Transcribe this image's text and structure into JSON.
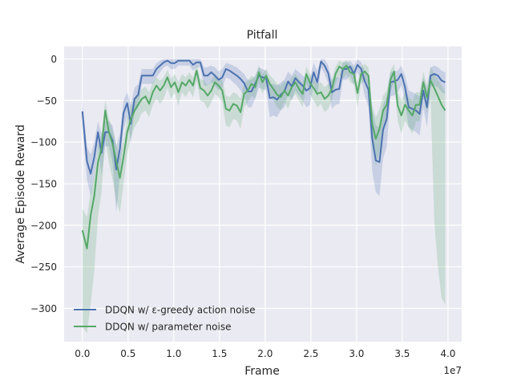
{
  "chart_data": {
    "type": "line",
    "title": "Pitfall",
    "xlabel": "Frame",
    "ylabel": "Average Episode Reward",
    "x_offset_label": "1e7",
    "xlim": [
      -0.2,
      4.15
    ],
    "ylim": [
      -340,
      15
    ],
    "xticks": [
      0.0,
      0.5,
      1.0,
      1.5,
      2.0,
      2.5,
      3.0,
      3.5,
      4.0
    ],
    "xtick_labels": [
      "0.0",
      "0.5",
      "1.0",
      "1.5",
      "2.0",
      "2.5",
      "3.0",
      "3.5",
      "4.0"
    ],
    "yticks": [
      0,
      -50,
      -100,
      -150,
      -200,
      -250,
      -300
    ],
    "ytick_labels": [
      "0",
      "−50",
      "−100",
      "−150",
      "−200",
      "−250",
      "−300"
    ],
    "grid": true,
    "legend_position": "lower-left",
    "style": {
      "plot_background": "#eaeaf2",
      "grid_color": "#ffffff"
    },
    "series": [
      {
        "name": "DDQN w/ ε-greedy action noise",
        "color": "#4c72b0",
        "x": [
          0.0,
          0.05,
          0.09,
          0.13,
          0.17,
          0.21,
          0.25,
          0.29,
          0.33,
          0.37,
          0.41,
          0.45,
          0.49,
          0.53,
          0.57,
          0.61,
          0.65,
          0.69,
          0.73,
          0.77,
          0.81,
          0.85,
          0.89,
          0.93,
          0.97,
          1.01,
          1.05,
          1.09,
          1.13,
          1.17,
          1.21,
          1.25,
          1.29,
          1.33,
          1.37,
          1.41,
          1.45,
          1.49,
          1.53,
          1.57,
          1.61,
          1.65,
          1.69,
          1.73,
          1.77,
          1.81,
          1.85,
          1.89,
          1.93,
          1.97,
          2.01,
          2.05,
          2.09,
          2.13,
          2.17,
          2.21,
          2.25,
          2.29,
          2.33,
          2.37,
          2.41,
          2.45,
          2.49,
          2.53,
          2.57,
          2.61,
          2.65,
          2.69,
          2.73,
          2.77,
          2.81,
          2.85,
          2.89,
          2.93,
          2.97,
          3.01,
          3.05,
          3.09,
          3.13,
          3.17,
          3.21,
          3.25,
          3.29,
          3.33,
          3.37,
          3.41,
          3.45,
          3.49,
          3.53,
          3.57,
          3.61,
          3.65,
          3.69,
          3.73,
          3.77,
          3.81,
          3.85,
          3.89,
          3.93,
          3.97
        ],
        "values": [
          -63,
          -123,
          -138,
          -118,
          -88,
          -113,
          -88,
          -88,
          -98,
          -133,
          -108,
          -65,
          -53,
          -78,
          -48,
          -43,
          -20,
          -20,
          -20,
          -20,
          -12,
          -8,
          -4,
          -2,
          -5,
          -5,
          -2,
          -2,
          -2,
          -2,
          -7,
          -4,
          -4,
          -20,
          -20,
          -16,
          -20,
          -25,
          -22,
          -12,
          -14,
          -17,
          -20,
          -24,
          -29,
          -39,
          -39,
          -30,
          -20,
          -22,
          -23,
          -47,
          -46,
          -49,
          -43,
          -39,
          -27,
          -33,
          -23,
          -28,
          -32,
          -38,
          -35,
          -16,
          -28,
          -3,
          -8,
          -17,
          -40,
          -37,
          -36,
          -12,
          -12,
          -9,
          -18,
          -7,
          -12,
          -27,
          -37,
          -95,
          -122,
          -124,
          -85,
          -72,
          -28,
          -27,
          -25,
          -18,
          -34,
          -58,
          -60,
          -62,
          -66,
          -38,
          -58,
          -20,
          -18,
          -20,
          -26,
          -28
        ],
        "upper": [
          -50,
          -105,
          -115,
          -100,
          -75,
          -90,
          -75,
          -75,
          -80,
          -105,
          -90,
          -50,
          -40,
          -55,
          -35,
          -30,
          -12,
          -12,
          -12,
          -12,
          -5,
          -2,
          0,
          0,
          0,
          0,
          0,
          0,
          0,
          0,
          0,
          0,
          0,
          -10,
          -10,
          -8,
          -10,
          -15,
          -12,
          -5,
          -6,
          -8,
          -10,
          -14,
          -18,
          -25,
          -25,
          -20,
          -10,
          -12,
          -14,
          -30,
          -30,
          -32,
          -28,
          -25,
          -15,
          -20,
          -12,
          -16,
          -20,
          -24,
          -22,
          -5,
          -14,
          0,
          0,
          -8,
          -25,
          -22,
          -22,
          -4,
          -4,
          -2,
          -8,
          0,
          -4,
          -15,
          -22,
          -60,
          -80,
          -82,
          -55,
          -45,
          -16,
          -15,
          -14,
          -8,
          -20,
          -38,
          -40,
          -42,
          -45,
          -22,
          -36,
          -10,
          -8,
          -10,
          -14,
          -16
        ],
        "lower": [
          -80,
          -145,
          -165,
          -140,
          -105,
          -140,
          -105,
          -105,
          -125,
          -185,
          -140,
          -85,
          -70,
          -100,
          -65,
          -58,
          -30,
          -30,
          -30,
          -30,
          -22,
          -16,
          -10,
          -8,
          -12,
          -12,
          -8,
          -8,
          -8,
          -8,
          -14,
          -10,
          -10,
          -32,
          -32,
          -28,
          -32,
          -38,
          -35,
          -22,
          -24,
          -28,
          -32,
          -38,
          -45,
          -58,
          -58,
          -48,
          -35,
          -36,
          -38,
          -70,
          -68,
          -70,
          -62,
          -58,
          -42,
          -50,
          -38,
          -44,
          -50,
          -58,
          -55,
          -30,
          -46,
          -10,
          -18,
          -30,
          -60,
          -55,
          -54,
          -25,
          -25,
          -20,
          -32,
          -16,
          -24,
          -45,
          -58,
          -135,
          -160,
          -165,
          -120,
          -105,
          -45,
          -44,
          -40,
          -32,
          -52,
          -82,
          -85,
          -88,
          -92,
          -58,
          -82,
          -34,
          -32,
          -34,
          -40,
          -42
        ]
      },
      {
        "name": "DDQN w/ parameter noise",
        "color": "#55a868",
        "x": [
          0.0,
          0.05,
          0.09,
          0.13,
          0.17,
          0.21,
          0.25,
          0.29,
          0.33,
          0.37,
          0.41,
          0.45,
          0.49,
          0.53,
          0.57,
          0.61,
          0.65,
          0.69,
          0.73,
          0.77,
          0.81,
          0.85,
          0.89,
          0.93,
          0.97,
          1.01,
          1.05,
          1.09,
          1.13,
          1.17,
          1.21,
          1.25,
          1.29,
          1.33,
          1.37,
          1.41,
          1.45,
          1.49,
          1.53,
          1.57,
          1.61,
          1.65,
          1.69,
          1.73,
          1.77,
          1.81,
          1.85,
          1.89,
          1.93,
          1.97,
          2.01,
          2.05,
          2.09,
          2.13,
          2.17,
          2.21,
          2.25,
          2.29,
          2.33,
          2.37,
          2.41,
          2.45,
          2.49,
          2.53,
          2.57,
          2.61,
          2.65,
          2.69,
          2.73,
          2.77,
          2.81,
          2.85,
          2.89,
          2.93,
          2.97,
          3.01,
          3.05,
          3.09,
          3.13,
          3.17,
          3.21,
          3.25,
          3.29,
          3.33,
          3.37,
          3.41,
          3.45,
          3.49,
          3.53,
          3.57,
          3.61,
          3.65,
          3.69,
          3.73,
          3.77,
          3.81,
          3.85,
          3.89,
          3.93,
          3.97
        ],
        "values": [
          -206,
          -228,
          -188,
          -165,
          -124,
          -108,
          -62,
          -88,
          -102,
          -123,
          -143,
          -118,
          -88,
          -73,
          -62,
          -55,
          -48,
          -45,
          -54,
          -40,
          -32,
          -38,
          -32,
          -22,
          -34,
          -28,
          -40,
          -28,
          -32,
          -25,
          -32,
          -14,
          -35,
          -38,
          -44,
          -38,
          -28,
          -32,
          -38,
          -60,
          -62,
          -54,
          -56,
          -64,
          -42,
          -38,
          -30,
          -34,
          -16,
          -28,
          -20,
          -30,
          -36,
          -43,
          -46,
          -38,
          -44,
          -34,
          -28,
          -36,
          -42,
          -18,
          -29,
          -35,
          -42,
          -40,
          -48,
          -44,
          -36,
          -18,
          -9,
          -12,
          -8,
          -16,
          -18,
          -41,
          -18,
          -15,
          -20,
          -78,
          -96,
          -84,
          -62,
          -55,
          -25,
          -15,
          -56,
          -68,
          -55,
          -62,
          -68,
          -55,
          -55,
          -28,
          -46,
          -26,
          -35,
          -45,
          -55,
          -62
        ],
        "upper": [
          -180,
          -190,
          -160,
          -140,
          -105,
          -90,
          -50,
          -72,
          -85,
          -102,
          -118,
          -98,
          -72,
          -58,
          -48,
          -42,
          -36,
          -33,
          -40,
          -28,
          -22,
          -26,
          -22,
          -13,
          -24,
          -18,
          -28,
          -18,
          -22,
          -16,
          -22,
          -6,
          -24,
          -26,
          -32,
          -26,
          -18,
          -22,
          -26,
          -44,
          -46,
          -40,
          -42,
          -48,
          -30,
          -26,
          -20,
          -23,
          -8,
          -18,
          -12,
          -20,
          -24,
          -30,
          -32,
          -26,
          -30,
          -22,
          -18,
          -24,
          -30,
          -9,
          -18,
          -24,
          -30,
          -28,
          -34,
          -30,
          -24,
          -9,
          -2,
          -4,
          -1,
          -8,
          -9,
          -28,
          -9,
          -6,
          -10,
          -56,
          -70,
          -60,
          -44,
          -38,
          -14,
          -6,
          -40,
          -50,
          -40,
          -46,
          -50,
          -40,
          -40,
          -15,
          -32,
          -10,
          -18,
          -25,
          -32,
          -40
        ],
        "lower": [
          -322,
          -330,
          -295,
          -255,
          -190,
          -160,
          -95,
          -125,
          -145,
          -170,
          -185,
          -150,
          -115,
          -95,
          -82,
          -75,
          -65,
          -62,
          -70,
          -55,
          -48,
          -54,
          -48,
          -35,
          -48,
          -40,
          -56,
          -40,
          -46,
          -38,
          -46,
          -26,
          -50,
          -52,
          -60,
          -52,
          -42,
          -46,
          -52,
          -80,
          -82,
          -72,
          -74,
          -84,
          -58,
          -52,
          -44,
          -48,
          -28,
          -42,
          -32,
          -44,
          -50,
          -58,
          -62,
          -52,
          -60,
          -48,
          -42,
          -50,
          -58,
          -30,
          -42,
          -50,
          -58,
          -54,
          -64,
          -60,
          -50,
          -30,
          -20,
          -24,
          -18,
          -28,
          -30,
          -58,
          -30,
          -26,
          -32,
          -105,
          -128,
          -112,
          -85,
          -75,
          -40,
          -28,
          -75,
          -90,
          -74,
          -82,
          -90,
          -75,
          -75,
          -45,
          -65,
          -48,
          -195,
          -250,
          -288,
          -295
        ]
      }
    ]
  }
}
